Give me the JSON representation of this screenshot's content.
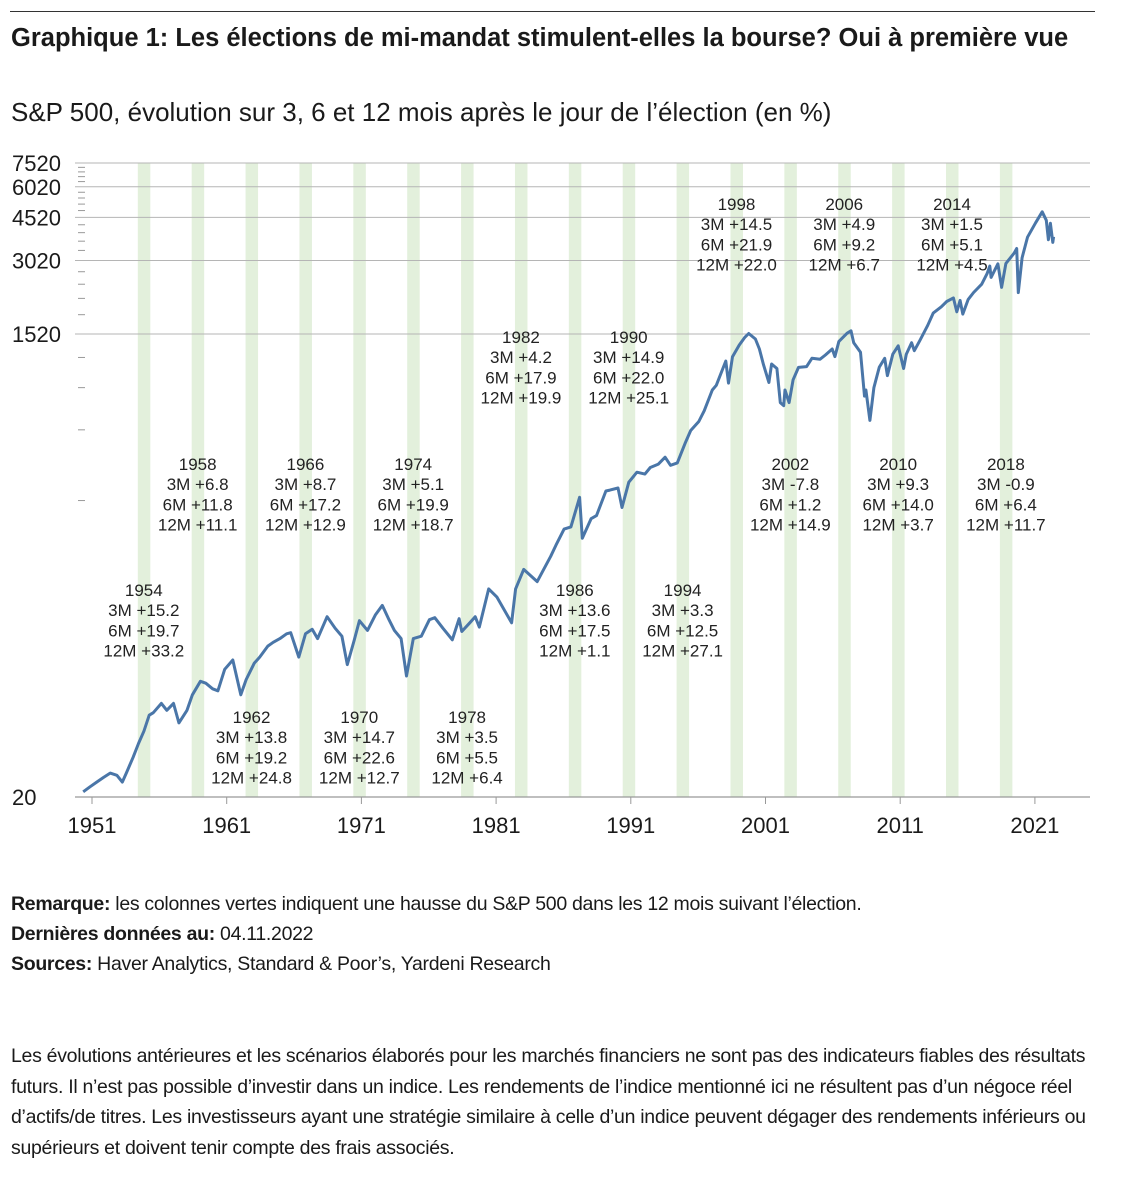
{
  "title": "Graphique 1: Les élections de mi-mandat stimulent-elles la bourse? Oui à première vue",
  "subtitle": "S&P 500, évolution sur 3, 6 et 12 mois après le jour de l’élection (en %)",
  "notes": {
    "remark_label": "Remarque:",
    "remark_text": " les colonnes vertes indiquent une hausse du S&P 500 dans les 12 mois suivant l’élection.",
    "date_label": "Dernières données au:",
    "date_text": " 04.11.2022",
    "sources_label": "Sources:",
    "sources_text": " Haver Analytics, Standard & Poor’s, Yardeni Research"
  },
  "disclaimer": "Les évolutions antérieures et les scénarios élaborés pour les marchés financiers ne sont pas des indicateurs fiables des résultats futurs. Il n’est pas possible d’investir dans un indice. Les rendements de l’indice mentionné ici ne résultent pas d’un négoce réel d’actifs/de titres. Les investisseurs ayant une stratégie similaire à celle d’un indice peuvent dégager des rendements inférieurs ou supérieurs et doivent tenir compte des frais associés.",
  "chart_data": {
    "type": "line",
    "series_name": "S&P 500",
    "y_scale": "log",
    "ylim": [
      20,
      7520
    ],
    "y_ticks": [
      20,
      1520,
      3020,
      4520,
      6020,
      7520
    ],
    "y_minor_step": 300,
    "xlim": [
      1950.7,
      2023.4
    ],
    "x_ticks": [
      1951,
      1961,
      1971,
      1981,
      1991,
      2001,
      2011,
      2021
    ],
    "grid": "horizontal",
    "colors": {
      "line": "#4a76a8",
      "column": "#e3f0dc",
      "grid": "#b5b5b5"
    },
    "points": [
      [
        1950.8,
        21
      ],
      [
        1951.3,
        22
      ],
      [
        1951.8,
        23
      ],
      [
        1952.3,
        24
      ],
      [
        1952.8,
        25
      ],
      [
        1953.3,
        24.5
      ],
      [
        1953.7,
        23
      ],
      [
        1954.0,
        25
      ],
      [
        1954.5,
        29
      ],
      [
        1954.9,
        33
      ],
      [
        1955.3,
        37
      ],
      [
        1955.7,
        43
      ],
      [
        1956.0,
        44
      ],
      [
        1956.6,
        48
      ],
      [
        1957.0,
        45
      ],
      [
        1957.5,
        48
      ],
      [
        1957.9,
        40
      ],
      [
        1958.5,
        45
      ],
      [
        1958.9,
        52
      ],
      [
        1959.5,
        59
      ],
      [
        1959.9,
        58
      ],
      [
        1960.4,
        55
      ],
      [
        1960.8,
        54
      ],
      [
        1961.3,
        66
      ],
      [
        1961.9,
        72
      ],
      [
        1962.5,
        52
      ],
      [
        1962.9,
        60
      ],
      [
        1963.5,
        70
      ],
      [
        1963.9,
        74
      ],
      [
        1964.5,
        82
      ],
      [
        1964.9,
        85
      ],
      [
        1965.4,
        88
      ],
      [
        1965.9,
        92
      ],
      [
        1966.2,
        93
      ],
      [
        1966.8,
        74
      ],
      [
        1967.3,
        92
      ],
      [
        1967.8,
        96
      ],
      [
        1968.2,
        88
      ],
      [
        1968.9,
        108
      ],
      [
        1969.5,
        97
      ],
      [
        1970.0,
        90
      ],
      [
        1970.4,
        69
      ],
      [
        1970.9,
        86
      ],
      [
        1971.3,
        104
      ],
      [
        1971.9,
        95
      ],
      [
        1972.5,
        110
      ],
      [
        1973.0,
        120
      ],
      [
        1973.5,
        105
      ],
      [
        1973.9,
        95
      ],
      [
        1974.4,
        88
      ],
      [
        1974.8,
        62
      ],
      [
        1975.3,
        88
      ],
      [
        1975.9,
        90
      ],
      [
        1976.5,
        105
      ],
      [
        1976.9,
        107
      ],
      [
        1977.5,
        97
      ],
      [
        1978.2,
        87
      ],
      [
        1978.7,
        106
      ],
      [
        1978.9,
        94
      ],
      [
        1979.5,
        102
      ],
      [
        1979.9,
        108
      ],
      [
        1980.2,
        98
      ],
      [
        1980.9,
        140
      ],
      [
        1981.5,
        130
      ],
      [
        1982.6,
        102
      ],
      [
        1982.9,
        140
      ],
      [
        1983.5,
        168
      ],
      [
        1984.5,
        150
      ],
      [
        1984.9,
        165
      ],
      [
        1985.5,
        190
      ],
      [
        1985.9,
        211
      ],
      [
        1986.5,
        245
      ],
      [
        1987.0,
        250
      ],
      [
        1987.65,
        330
      ],
      [
        1987.85,
        225
      ],
      [
        1988.5,
        270
      ],
      [
        1988.9,
        278
      ],
      [
        1989.6,
        350
      ],
      [
        1989.9,
        353
      ],
      [
        1990.5,
        360
      ],
      [
        1990.8,
        300
      ],
      [
        1991.3,
        380
      ],
      [
        1991.9,
        417
      ],
      [
        1992.5,
        410
      ],
      [
        1992.9,
        436
      ],
      [
        1993.5,
        450
      ],
      [
        1994.0,
        480
      ],
      [
        1994.4,
        445
      ],
      [
        1994.9,
        455
      ],
      [
        1995.5,
        550
      ],
      [
        1995.9,
        616
      ],
      [
        1996.5,
        670
      ],
      [
        1996.9,
        741
      ],
      [
        1997.5,
        900
      ],
      [
        1997.8,
        940
      ],
      [
        1998.5,
        1180
      ],
      [
        1998.7,
        960
      ],
      [
        1999.0,
        1229
      ],
      [
        1999.5,
        1370
      ],
      [
        1999.9,
        1469
      ],
      [
        2000.2,
        1527
      ],
      [
        2000.7,
        1450
      ],
      [
        2001.0,
        1320
      ],
      [
        2001.3,
        1140
      ],
      [
        2001.7,
        965
      ],
      [
        2001.9,
        1148
      ],
      [
        2002.3,
        1100
      ],
      [
        2002.55,
        800
      ],
      [
        2002.8,
        777
      ],
      [
        2002.9,
        900
      ],
      [
        2003.2,
        800
      ],
      [
        2003.5,
        990
      ],
      [
        2003.9,
        1112
      ],
      [
        2004.5,
        1120
      ],
      [
        2004.9,
        1212
      ],
      [
        2005.5,
        1200
      ],
      [
        2005.9,
        1248
      ],
      [
        2006.4,
        1320
      ],
      [
        2006.6,
        1230
      ],
      [
        2006.9,
        1418
      ],
      [
        2007.5,
        1530
      ],
      [
        2007.8,
        1565
      ],
      [
        2008.0,
        1400
      ],
      [
        2008.5,
        1280
      ],
      [
        2008.8,
        850
      ],
      [
        2008.9,
        900
      ],
      [
        2009.2,
        677
      ],
      [
        2009.5,
        920
      ],
      [
        2009.9,
        1115
      ],
      [
        2010.3,
        1210
      ],
      [
        2010.5,
        1030
      ],
      [
        2010.9,
        1258
      ],
      [
        2011.3,
        1360
      ],
      [
        2011.7,
        1100
      ],
      [
        2011.9,
        1258
      ],
      [
        2012.3,
        1400
      ],
      [
        2012.5,
        1300
      ],
      [
        2012.9,
        1426
      ],
      [
        2013.5,
        1650
      ],
      [
        2013.9,
        1848
      ],
      [
        2014.5,
        1960
      ],
      [
        2014.9,
        2059
      ],
      [
        2015.4,
        2130
      ],
      [
        2015.65,
        1870
      ],
      [
        2015.9,
        2080
      ],
      [
        2016.1,
        1830
      ],
      [
        2016.5,
        2100
      ],
      [
        2016.9,
        2239
      ],
      [
        2017.5,
        2420
      ],
      [
        2017.9,
        2674
      ],
      [
        2018.1,
        2870
      ],
      [
        2018.2,
        2580
      ],
      [
        2018.7,
        2930
      ],
      [
        2018.98,
        2350
      ],
      [
        2019.3,
        2940
      ],
      [
        2019.9,
        3231
      ],
      [
        2020.1,
        3380
      ],
      [
        2020.22,
        2237
      ],
      [
        2020.5,
        3100
      ],
      [
        2020.9,
        3756
      ],
      [
        2021.5,
        4300
      ],
      [
        2021.99,
        4766
      ],
      [
        2022.3,
        4400
      ],
      [
        2022.45,
        3670
      ],
      [
        2022.6,
        4280
      ],
      [
        2022.78,
        3580
      ],
      [
        2022.84,
        3770
      ]
    ],
    "elections": [
      {
        "year": "1954",
        "m3": "3M +15.2",
        "m6": "6M +19.7",
        "m12": "12M +33.2"
      },
      {
        "year": "1958",
        "m3": "3M +6.8",
        "m6": "6M +11.8",
        "m12": "12M +11.1"
      },
      {
        "year": "1962",
        "m3": "3M +13.8",
        "m6": "6M +19.2",
        "m12": "12M +24.8"
      },
      {
        "year": "1966",
        "m3": "3M +8.7",
        "m6": "6M +17.2",
        "m12": "12M +12.9"
      },
      {
        "year": "1970",
        "m3": "3M +14.7",
        "m6": "6M +22.6",
        "m12": "12M +12.7"
      },
      {
        "year": "1974",
        "m3": "3M +5.1",
        "m6": "6M +19.9",
        "m12": "12M +18.7"
      },
      {
        "year": "1978",
        "m3": "3M +3.5",
        "m6": "6M +5.5",
        "m12": "12M +6.4"
      },
      {
        "year": "1982",
        "m3": "3M +4.2",
        "m6": "6M +17.9",
        "m12": "12M +19.9"
      },
      {
        "year": "1986",
        "m3": "3M +13.6",
        "m6": "6M +17.5",
        "m12": "12M +1.1"
      },
      {
        "year": "1990",
        "m3": "3M +14.9",
        "m6": "6M +22.0",
        "m12": "12M +25.1"
      },
      {
        "year": "1994",
        "m3": "3M +3.3",
        "m6": "6M +12.5",
        "m12": "12M +27.1"
      },
      {
        "year": "1998",
        "m3": "3M +14.5",
        "m6": "6M +21.9",
        "m12": "12M +22.0"
      },
      {
        "year": "2002",
        "m3": "3M -7.8",
        "m6": "6M +1.2",
        "m12": "12M +14.9"
      },
      {
        "year": "2006",
        "m3": "3M +4.9",
        "m6": "6M +9.2",
        "m12": "12M +6.7"
      },
      {
        "year": "2010",
        "m3": "3M +9.3",
        "m6": "6M +14.0",
        "m12": "12M +3.7"
      },
      {
        "year": "2014",
        "m3": "3M +1.5",
        "m6": "6M +5.1",
        "m12": "12M +4.5"
      },
      {
        "year": "2018",
        "m3": "3M -0.9",
        "m6": "6M +6.4",
        "m12": "12M +11.7"
      }
    ]
  }
}
